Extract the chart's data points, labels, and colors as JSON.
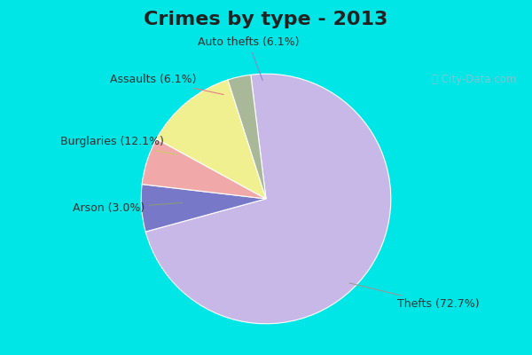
{
  "title": "Crimes by type - 2013",
  "slices": [
    {
      "label": "Thefts (72.7%)",
      "value": 72.7,
      "color": "#c8b8e8"
    },
    {
      "label": "Auto thefts (6.1%)",
      "value": 6.1,
      "color": "#7878c8"
    },
    {
      "label": "Assaults (6.1%)",
      "value": 6.1,
      "color": "#f0a8a8"
    },
    {
      "label": "Burglaries (12.1%)",
      "value": 12.1,
      "color": "#f0f090"
    },
    {
      "label": "Arson (3.0%)",
      "value": 3.0,
      "color": "#a8b898"
    }
  ],
  "bg_cyan": "#00e5e5",
  "bg_main": "#e0f0e8",
  "title_fontsize": 16,
  "label_fontsize": 9,
  "startangle": 97,
  "title_color": "#222222",
  "label_color": "#333333",
  "watermark": "City-Data.com"
}
